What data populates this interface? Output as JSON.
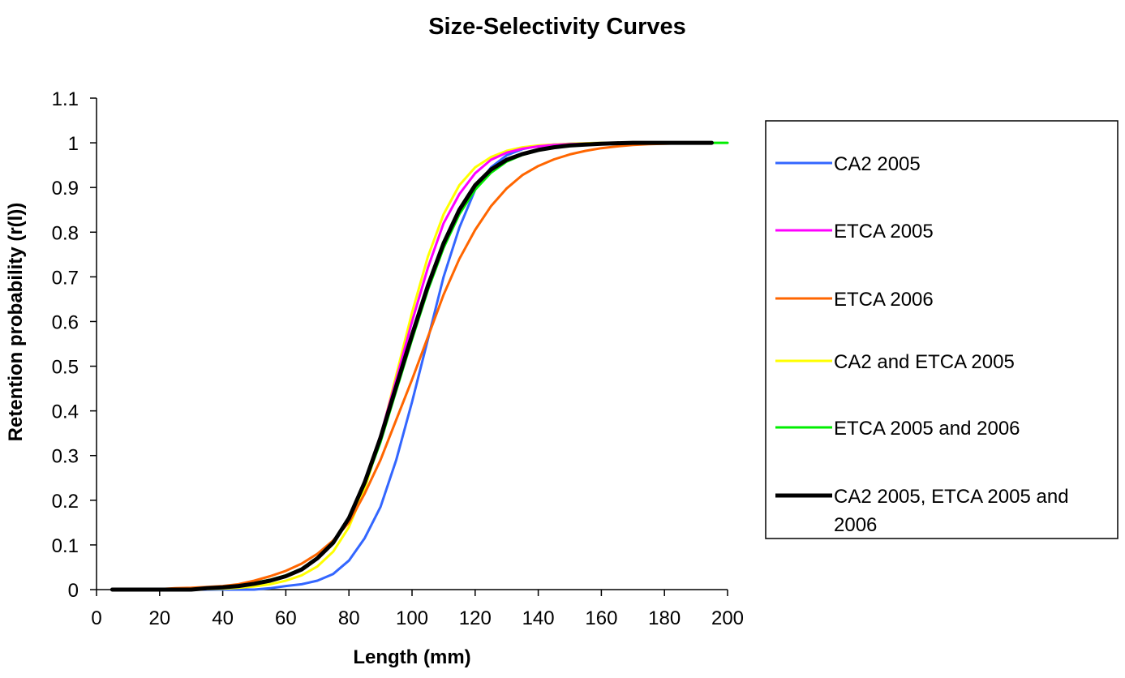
{
  "chart_data": {
    "type": "line",
    "title": "Size-Selectivity Curves",
    "xlabel": "Length (mm)",
    "ylabel": "Retention probability (r(l))",
    "xlim": [
      0,
      200
    ],
    "ylim": [
      0,
      1.1
    ],
    "x_ticks": [
      "0",
      "20",
      "40",
      "60",
      "80",
      "100",
      "120",
      "140",
      "160",
      "180",
      "200"
    ],
    "y_ticks": [
      "0",
      "0.1",
      "0.2",
      "0.3",
      "0.4",
      "0.5",
      "0.6",
      "0.7",
      "0.8",
      "0.9",
      "1",
      "1.1"
    ],
    "grid": false,
    "legend_position": "right",
    "series": [
      {
        "name": "CA2 2005",
        "color": "#3366ff",
        "width": 3,
        "x": [
          5,
          10,
          15,
          20,
          25,
          30,
          35,
          40,
          45,
          50,
          55,
          60,
          65,
          70,
          75,
          80,
          85,
          90,
          95,
          100,
          105,
          110,
          115,
          120,
          125,
          130,
          135,
          140,
          145,
          150,
          155,
          160,
          165,
          170,
          175,
          180,
          185,
          190,
          195
        ],
        "y": [
          0,
          0,
          0,
          0,
          0,
          0,
          0,
          0,
          0,
          0,
          0.003,
          0.008,
          0.012,
          0.02,
          0.035,
          0.065,
          0.115,
          0.185,
          0.29,
          0.42,
          0.56,
          0.7,
          0.81,
          0.895,
          0.945,
          0.972,
          0.986,
          0.993,
          0.996,
          0.998,
          0.999,
          1,
          1,
          1,
          1,
          1,
          1,
          1,
          1
        ]
      },
      {
        "name": "ETCA 2005",
        "color": "#ff00ff",
        "width": 3,
        "x": [
          5,
          10,
          15,
          20,
          25,
          30,
          35,
          40,
          45,
          50,
          55,
          60,
          65,
          70,
          75,
          80,
          85,
          90,
          95,
          100,
          105,
          110,
          115,
          120,
          125,
          130,
          135,
          140,
          145,
          150,
          155,
          160,
          165,
          170,
          175,
          180,
          185,
          190,
          195
        ],
        "y": [
          0,
          0,
          0,
          0,
          0,
          0,
          0.002,
          0.004,
          0.008,
          0.013,
          0.02,
          0.03,
          0.045,
          0.07,
          0.105,
          0.16,
          0.24,
          0.345,
          0.47,
          0.6,
          0.72,
          0.82,
          0.885,
          0.932,
          0.962,
          0.978,
          0.987,
          0.992,
          0.995,
          0.997,
          0.998,
          0.999,
          1,
          1,
          1,
          1,
          1,
          1,
          1
        ]
      },
      {
        "name": "ETCA 2006",
        "color": "#ff6600",
        "width": 3,
        "x": [
          5,
          10,
          15,
          20,
          25,
          30,
          35,
          40,
          45,
          50,
          55,
          60,
          65,
          70,
          75,
          80,
          85,
          90,
          95,
          100,
          105,
          110,
          115,
          120,
          125,
          130,
          135,
          140,
          145,
          150,
          155,
          160,
          165,
          170,
          175,
          180,
          185,
          190,
          195
        ],
        "y": [
          0,
          0,
          0,
          0.001,
          0.003,
          0.004,
          0.006,
          0.008,
          0.012,
          0.02,
          0.03,
          0.042,
          0.058,
          0.08,
          0.11,
          0.15,
          0.215,
          0.29,
          0.38,
          0.47,
          0.565,
          0.66,
          0.74,
          0.805,
          0.858,
          0.898,
          0.928,
          0.948,
          0.963,
          0.974,
          0.982,
          0.988,
          0.992,
          0.995,
          0.997,
          0.998,
          0.999,
          1,
          1
        ]
      },
      {
        "name": "CA2 and ETCA 2005",
        "color": "#ffff00",
        "width": 3,
        "x": [
          5,
          10,
          15,
          20,
          25,
          30,
          35,
          40,
          45,
          50,
          55,
          60,
          65,
          70,
          75,
          80,
          85,
          90,
          95,
          100,
          105,
          110,
          115,
          120,
          125,
          130,
          135,
          140,
          145,
          150,
          155,
          160,
          165,
          170,
          175,
          180,
          185,
          190,
          195
        ],
        "y": [
          0,
          0,
          0,
          0,
          0,
          0,
          0.001,
          0.002,
          0.004,
          0.007,
          0.012,
          0.02,
          0.032,
          0.052,
          0.085,
          0.14,
          0.225,
          0.34,
          0.48,
          0.62,
          0.745,
          0.84,
          0.905,
          0.945,
          0.968,
          0.982,
          0.99,
          0.994,
          0.996,
          0.998,
          0.999,
          1,
          1,
          1,
          1,
          1,
          1,
          1,
          1
        ]
      },
      {
        "name": "ETCA 2005 and 2006",
        "color": "#00ee00",
        "width": 3,
        "x": [
          5,
          10,
          15,
          20,
          25,
          30,
          35,
          40,
          45,
          50,
          55,
          60,
          65,
          70,
          75,
          80,
          85,
          90,
          95,
          100,
          105,
          110,
          115,
          120,
          125,
          130,
          135,
          140,
          145,
          150,
          155,
          160,
          165,
          170,
          175,
          180,
          185,
          190,
          195,
          200
        ],
        "y": [
          0,
          0,
          0,
          0,
          0,
          0.002,
          0.004,
          0.006,
          0.01,
          0.015,
          0.022,
          0.032,
          0.047,
          0.072,
          0.107,
          0.16,
          0.235,
          0.33,
          0.445,
          0.56,
          0.67,
          0.765,
          0.84,
          0.895,
          0.933,
          0.958,
          0.973,
          0.983,
          0.99,
          0.994,
          0.996,
          0.998,
          0.999,
          1,
          1,
          1,
          1,
          1,
          1,
          1
        ]
      },
      {
        "name": "CA2 2005, ETCA 2005 and 2006",
        "color": "#000000",
        "width": 5,
        "x": [
          5,
          10,
          15,
          20,
          25,
          30,
          35,
          40,
          45,
          50,
          55,
          60,
          65,
          70,
          75,
          80,
          85,
          90,
          95,
          100,
          105,
          110,
          115,
          120,
          125,
          130,
          135,
          140,
          145,
          150,
          155,
          160,
          165,
          170,
          175,
          180,
          185,
          190,
          195
        ],
        "y": [
          0,
          0,
          0,
          0,
          0,
          0,
          0.003,
          0.005,
          0.008,
          0.013,
          0.02,
          0.03,
          0.045,
          0.07,
          0.105,
          0.16,
          0.24,
          0.34,
          0.455,
          0.57,
          0.68,
          0.775,
          0.85,
          0.905,
          0.94,
          0.962,
          0.975,
          0.984,
          0.99,
          0.994,
          0.996,
          0.998,
          0.999,
          1,
          1,
          1,
          1,
          1,
          1
        ]
      }
    ]
  }
}
